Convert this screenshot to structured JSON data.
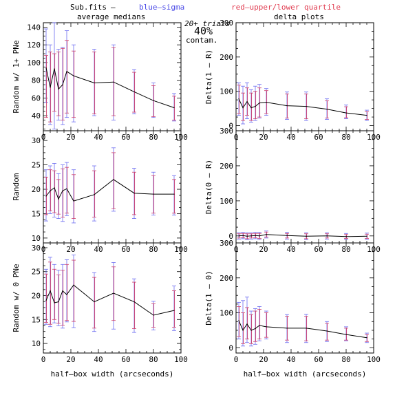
{
  "header": {
    "file": "Sub.fits",
    "dash": "–",
    "blue_label": "blue–sigma",
    "red_label": "red–upper/lower quartile",
    "left_title": "average medians",
    "right_title": "delta plots",
    "trials": "20+ trials",
    "contam_pct": "40%",
    "contam_label": "contam."
  },
  "colors": {
    "line": "#000000",
    "sigma": "#6a6af0",
    "quartile": "#d0406a",
    "blue_text": "#4a4ae6",
    "red_text": "#e03c50"
  },
  "chart_data": [
    {
      "id": "random-1plus",
      "type": "line",
      "ylabel": "Random w/ 1+ PNe",
      "xlim": [
        0,
        100
      ],
      "ylim": [
        23,
        145
      ],
      "x_ticks": [
        "0",
        "20",
        "40",
        "60",
        "80",
        "100"
      ],
      "y_ticks": [
        40,
        60,
        80,
        100,
        120,
        140
      ],
      "x": [
        2,
        5,
        8,
        11,
        14,
        17,
        22,
        37,
        51,
        66,
        80,
        95
      ],
      "y": [
        94,
        72,
        93,
        70,
        75,
        90,
        85,
        77,
        78,
        67,
        57,
        49
      ],
      "sigma_low": [
        55,
        30,
        25,
        35,
        30,
        38,
        33,
        40,
        35,
        42,
        38,
        34
      ],
      "sigma_high": [
        138,
        120,
        150,
        115,
        117,
        136,
        120,
        115,
        120,
        92,
        77,
        65
      ],
      "quartile_low": [
        38,
        33,
        45,
        40,
        35,
        43,
        38,
        42,
        40,
        44,
        39,
        35
      ],
      "quartile_high": [
        108,
        112,
        110,
        112,
        116,
        125,
        113,
        112,
        117,
        89,
        74,
        62
      ]
    },
    {
      "id": "random",
      "type": "line",
      "ylabel": "Random",
      "xlim": [
        0,
        100
      ],
      "ylim": [
        9,
        32
      ],
      "x_ticks": [
        "0",
        "20",
        "40",
        "60",
        "80",
        "100"
      ],
      "y_ticks": [
        10,
        15,
        20,
        25,
        30
      ],
      "x": [
        2,
        5,
        8,
        11,
        14,
        17,
        22,
        37,
        51,
        66,
        80,
        95
      ],
      "y": [
        18.6,
        19.7,
        20.3,
        18.0,
        19.7,
        20.1,
        17.6,
        18.9,
        22.0,
        19.2,
        19.0,
        19.0
      ],
      "sigma_low": [
        13.5,
        15.0,
        14.3,
        14.0,
        13.4,
        14.6,
        13.1,
        13.5,
        15.5,
        14.0,
        14.7,
        14.7
      ],
      "sigma_high": [
        24.0,
        24.8,
        25.3,
        23.2,
        25.0,
        25.5,
        24.0,
        24.8,
        28.5,
        24.3,
        23.5,
        22.8
      ],
      "quartile_low": [
        14.8,
        15.6,
        15.2,
        14.9,
        14.3,
        15.1,
        14.0,
        14.3,
        16.0,
        14.8,
        15.1,
        15.1
      ],
      "quartile_high": [
        22.5,
        24.0,
        23.8,
        22.0,
        24.2,
        24.5,
        23.0,
        23.8,
        27.5,
        23.5,
        22.8,
        22.0
      ]
    },
    {
      "id": "random-0",
      "type": "line",
      "ylabel": "Random w/ 0 PNe",
      "xlim": [
        0,
        100
      ],
      "ylim": [
        8,
        31
      ],
      "x_ticks": [
        "0",
        "20",
        "40",
        "60",
        "80",
        "100"
      ],
      "y_ticks": [
        10,
        15,
        20,
        25,
        30
      ],
      "x": [
        2,
        5,
        8,
        11,
        14,
        17,
        22,
        37,
        51,
        66,
        80,
        95
      ],
      "y": [
        19.0,
        21.0,
        18.5,
        18.7,
        21.0,
        20.2,
        22.2,
        18.7,
        20.5,
        18.7,
        15.9,
        16.9
      ],
      "sigma_low": [
        14.0,
        13.5,
        14.3,
        13.7,
        13.2,
        14.5,
        13.3,
        12.5,
        13.0,
        12.3,
        12.8,
        12.7
      ],
      "sigma_high": [
        25.5,
        28.0,
        26.5,
        25.3,
        26.5,
        27.5,
        28.5,
        24.8,
        26.9,
        23.5,
        18.8,
        22.0
      ],
      "quartile_low": [
        14.4,
        14.0,
        15.0,
        14.2,
        13.8,
        14.8,
        14.6,
        13.2,
        14.8,
        13.1,
        13.4,
        13.4
      ],
      "quartile_high": [
        24.5,
        27.0,
        25.5,
        24.3,
        25.3,
        26.5,
        27.4,
        23.8,
        26.0,
        22.8,
        18.3,
        21.0
      ]
    },
    {
      "id": "delta-1-r",
      "type": "line",
      "ylabel": "Delta(1 – R)",
      "xlim": [
        0,
        100
      ],
      "ylim": [
        -15,
        300
      ],
      "x_ticks": [
        "0",
        "20",
        "40",
        "60",
        "80",
        "100"
      ],
      "y_ticks": [
        0,
        100,
        200,
        300
      ],
      "x": [
        2,
        5,
        8,
        11,
        14,
        17,
        22,
        37,
        51,
        66,
        80,
        95
      ],
      "y": [
        78,
        52,
        70,
        52,
        56,
        66,
        68,
        58,
        56,
        48,
        37,
        30
      ],
      "sigma_low": [
        30,
        5,
        20,
        10,
        15,
        22,
        30,
        18,
        15,
        18,
        20,
        15
      ],
      "sigma_high": [
        125,
        115,
        125,
        105,
        115,
        120,
        108,
        98,
        98,
        78,
        60,
        45
      ],
      "quartile_low": [
        35,
        15,
        30,
        15,
        20,
        25,
        35,
        22,
        20,
        22,
        23,
        18
      ],
      "quartile_high": [
        118,
        95,
        110,
        95,
        100,
        110,
        102,
        92,
        92,
        72,
        55,
        40
      ]
    },
    {
      "id": "delta-0-r",
      "type": "line",
      "ylabel": "Delta(0 – R)",
      "xlim": [
        0,
        100
      ],
      "ylim": [
        -20,
        300
      ],
      "x_ticks": [
        "0",
        "20",
        "40",
        "60",
        "80",
        "100"
      ],
      "y_ticks": [
        0,
        100,
        200,
        300
      ],
      "x": [
        2,
        5,
        8,
        11,
        14,
        17,
        22,
        37,
        51,
        66,
        80,
        95
      ],
      "y": [
        0,
        1,
        -1,
        0,
        1,
        0,
        4,
        1,
        -1,
        0,
        -2,
        -1
      ],
      "sigma_low": [
        -9,
        -8,
        -11,
        -9,
        -8,
        -10,
        -6,
        -9,
        -11,
        -9,
        -10,
        -10
      ],
      "sigma_high": [
        9,
        10,
        9,
        9,
        10,
        10,
        14,
        10,
        9,
        9,
        7,
        8
      ],
      "quartile_low": [
        -6,
        -5,
        -8,
        -6,
        -5,
        -7,
        -3,
        -6,
        -8,
        -6,
        -7,
        -7
      ],
      "quartile_high": [
        6,
        7,
        6,
        6,
        7,
        7,
        11,
        7,
        6,
        6,
        4,
        5
      ]
    },
    {
      "id": "delta-1-0",
      "type": "line",
      "ylabel": "Delta(1 – 0)",
      "xlim": [
        0,
        100
      ],
      "ylim": [
        -15,
        300
      ],
      "x_ticks": [
        "0",
        "20",
        "40",
        "60",
        "80",
        "100"
      ],
      "y_ticks": [
        0,
        100,
        200,
        300
      ],
      "x": [
        2,
        5,
        8,
        11,
        14,
        17,
        22,
        37,
        51,
        66,
        80,
        95
      ],
      "y": [
        78,
        50,
        68,
        50,
        55,
        64,
        60,
        56,
        56,
        48,
        38,
        29
      ],
      "sigma_low": [
        25,
        5,
        15,
        5,
        10,
        20,
        25,
        15,
        15,
        18,
        20,
        15
      ],
      "sigma_high": [
        130,
        135,
        145,
        105,
        112,
        118,
        105,
        95,
        96,
        75,
        60,
        42
      ],
      "quartile_low": [
        32,
        12,
        25,
        12,
        18,
        25,
        30,
        22,
        20,
        22,
        22,
        18
      ],
      "quartile_high": [
        118,
        100,
        115,
        95,
        105,
        110,
        100,
        90,
        90,
        70,
        56,
        38
      ]
    }
  ],
  "footer": {
    "xlabel_left": "half–box width (arcseconds)",
    "xlabel_right": "half–box width (arcseconds)"
  }
}
